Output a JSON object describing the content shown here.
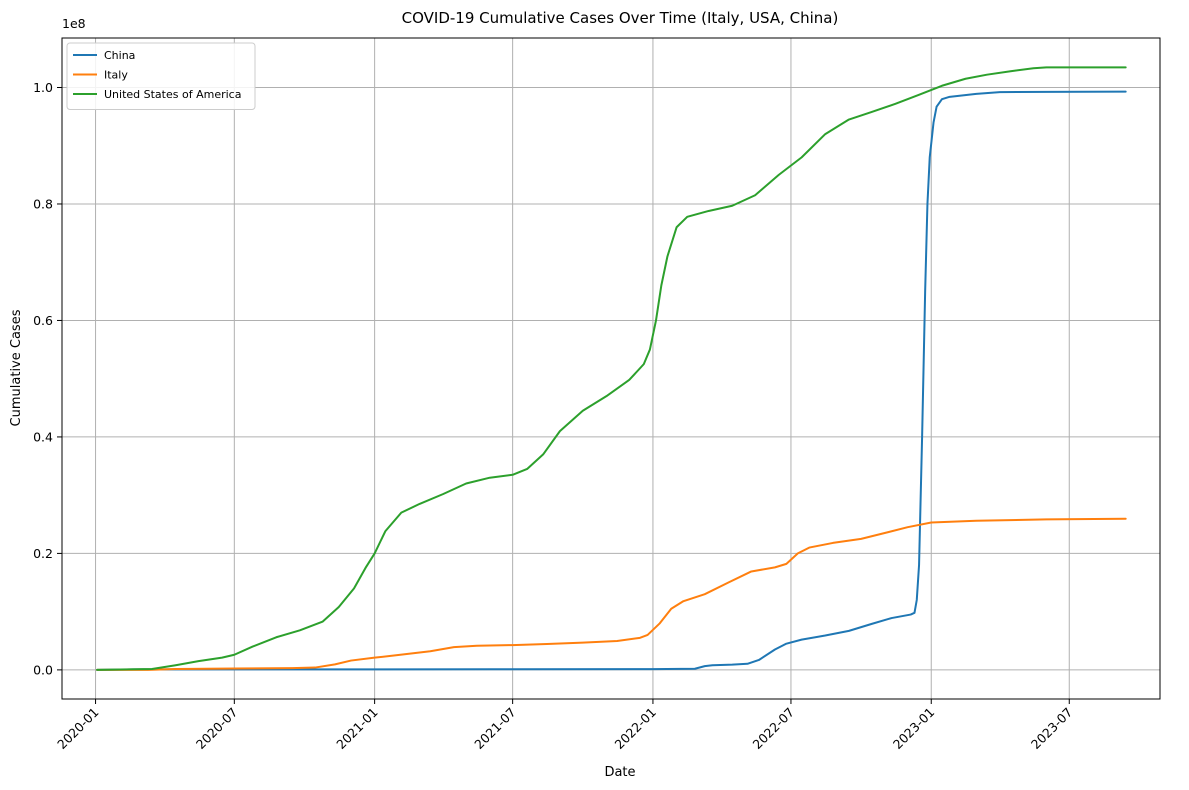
{
  "chart_data": {
    "type": "line",
    "title": "COVID-19 Cumulative Cases Over Time (Italy, USA, China)",
    "xlabel": "Date",
    "ylabel": "Cumulative Cases",
    "y_offset_label": "1e8",
    "x_axis_type": "date",
    "xlim": [
      "2019-11-18",
      "2023-10-28"
    ],
    "ylim": [
      -5000000,
      108500000
    ],
    "x_ticks": [
      "2020-01-01",
      "2020-07-01",
      "2021-01-01",
      "2021-07-01",
      "2022-01-01",
      "2022-07-01",
      "2023-01-01",
      "2023-07-01"
    ],
    "x_tick_labels": [
      "2020-01",
      "2020-07",
      "2021-01",
      "2021-07",
      "2022-01",
      "2022-07",
      "2023-01",
      "2023-07"
    ],
    "y_ticks": [
      0,
      20000000,
      40000000,
      60000000,
      80000000,
      100000000
    ],
    "y_tick_labels": [
      "0.0",
      "0.2",
      "0.4",
      "0.6",
      "0.8",
      "1.0"
    ],
    "grid": true,
    "legend_position": "top-left",
    "series": [
      {
        "name": "China",
        "color": "#1f77b4",
        "points": [
          [
            "2020-01-03",
            0
          ],
          [
            "2020-02-20",
            80000
          ],
          [
            "2020-06-01",
            84000
          ],
          [
            "2021-06-01",
            105000
          ],
          [
            "2022-01-01",
            130000
          ],
          [
            "2022-02-25",
            190000
          ],
          [
            "2022-03-10",
            650000
          ],
          [
            "2022-03-20",
            800000
          ],
          [
            "2022-04-15",
            900000
          ],
          [
            "2022-05-05",
            1050000
          ],
          [
            "2022-05-20",
            1700000
          ],
          [
            "2022-06-10",
            3500000
          ],
          [
            "2022-06-25",
            4500000
          ],
          [
            "2022-07-15",
            5200000
          ],
          [
            "2022-08-15",
            5900000
          ],
          [
            "2022-09-15",
            6700000
          ],
          [
            "2022-10-15",
            7900000
          ],
          [
            "2022-11-10",
            8900000
          ],
          [
            "2022-12-05",
            9500000
          ],
          [
            "2022-12-10",
            9800000
          ],
          [
            "2022-12-13",
            12000000
          ],
          [
            "2022-12-16",
            18000000
          ],
          [
            "2022-12-20",
            40000000
          ],
          [
            "2022-12-24",
            65000000
          ],
          [
            "2022-12-27",
            80000000
          ],
          [
            "2022-12-30",
            88000000
          ],
          [
            "2023-01-04",
            94000000
          ],
          [
            "2023-01-08",
            96700000
          ],
          [
            "2023-01-15",
            98000000
          ],
          [
            "2023-01-25",
            98400000
          ],
          [
            "2023-03-01",
            98900000
          ],
          [
            "2023-04-01",
            99200000
          ],
          [
            "2023-06-01",
            99250000
          ],
          [
            "2023-09-13",
            99300000
          ]
        ]
      },
      {
        "name": "Italy",
        "color": "#ff7f0e",
        "points": [
          [
            "2020-01-03",
            0
          ],
          [
            "2020-03-10",
            10000
          ],
          [
            "2020-04-15",
            160000
          ],
          [
            "2020-07-01",
            240000
          ],
          [
            "2020-09-15",
            300000
          ],
          [
            "2020-10-15",
            400000
          ],
          [
            "2020-11-10",
            950000
          ],
          [
            "2020-12-01",
            1600000
          ],
          [
            "2021-01-01",
            2100000
          ],
          [
            "2021-02-01",
            2550000
          ],
          [
            "2021-03-15",
            3200000
          ],
          [
            "2021-04-15",
            3900000
          ],
          [
            "2021-05-15",
            4150000
          ],
          [
            "2021-07-01",
            4260000
          ],
          [
            "2021-08-15",
            4450000
          ],
          [
            "2021-10-01",
            4680000
          ],
          [
            "2021-11-15",
            4950000
          ],
          [
            "2021-12-15",
            5500000
          ],
          [
            "2021-12-25",
            6000000
          ],
          [
            "2022-01-10",
            8000000
          ],
          [
            "2022-01-25",
            10500000
          ],
          [
            "2022-02-10",
            11800000
          ],
          [
            "2022-03-10",
            13000000
          ],
          [
            "2022-04-10",
            15000000
          ],
          [
            "2022-05-10",
            16900000
          ],
          [
            "2022-06-10",
            17600000
          ],
          [
            "2022-06-25",
            18200000
          ],
          [
            "2022-07-10",
            20000000
          ],
          [
            "2022-07-25",
            21000000
          ],
          [
            "2022-08-25",
            21800000
          ],
          [
            "2022-10-01",
            22500000
          ],
          [
            "2022-11-01",
            23500000
          ],
          [
            "2022-12-01",
            24500000
          ],
          [
            "2023-01-01",
            25300000
          ],
          [
            "2023-03-01",
            25600000
          ],
          [
            "2023-06-01",
            25850000
          ],
          [
            "2023-09-13",
            25950000
          ]
        ]
      },
      {
        "name": "United States of America",
        "color": "#2ca02c",
        "points": [
          [
            "2020-01-03",
            0
          ],
          [
            "2020-03-15",
            150000
          ],
          [
            "2020-04-15",
            800000
          ],
          [
            "2020-05-15",
            1500000
          ],
          [
            "2020-06-15",
            2100000
          ],
          [
            "2020-07-01",
            2600000
          ],
          [
            "2020-07-25",
            4000000
          ],
          [
            "2020-08-25",
            5600000
          ],
          [
            "2020-09-25",
            6800000
          ],
          [
            "2020-10-25",
            8300000
          ],
          [
            "2020-11-15",
            10800000
          ],
          [
            "2020-12-05",
            14000000
          ],
          [
            "2020-12-20",
            17500000
          ],
          [
            "2021-01-01",
            20000000
          ],
          [
            "2021-01-15",
            23800000
          ],
          [
            "2021-02-05",
            27000000
          ],
          [
            "2021-03-01",
            28500000
          ],
          [
            "2021-04-01",
            30200000
          ],
          [
            "2021-05-01",
            32000000
          ],
          [
            "2021-06-01",
            33000000
          ],
          [
            "2021-07-01",
            33500000
          ],
          [
            "2021-07-20",
            34500000
          ],
          [
            "2021-08-10",
            37000000
          ],
          [
            "2021-09-01",
            41000000
          ],
          [
            "2021-10-01",
            44500000
          ],
          [
            "2021-11-01",
            47000000
          ],
          [
            "2021-12-01",
            49800000
          ],
          [
            "2021-12-20",
            52500000
          ],
          [
            "2021-12-28",
            55000000
          ],
          [
            "2022-01-05",
            60000000
          ],
          [
            "2022-01-12",
            66000000
          ],
          [
            "2022-01-20",
            71000000
          ],
          [
            "2022-02-01",
            76000000
          ],
          [
            "2022-02-15",
            77800000
          ],
          [
            "2022-03-15",
            78800000
          ],
          [
            "2022-04-15",
            79700000
          ],
          [
            "2022-05-15",
            81500000
          ],
          [
            "2022-06-15",
            85000000
          ],
          [
            "2022-07-15",
            88000000
          ],
          [
            "2022-08-15",
            92000000
          ],
          [
            "2022-09-15",
            94500000
          ],
          [
            "2022-10-15",
            95800000
          ],
          [
            "2022-11-15",
            97200000
          ],
          [
            "2022-12-15",
            98700000
          ],
          [
            "2023-01-15",
            100300000
          ],
          [
            "2023-02-15",
            101500000
          ],
          [
            "2023-03-15",
            102200000
          ],
          [
            "2023-04-15",
            102800000
          ],
          [
            "2023-05-15",
            103300000
          ],
          [
            "2023-06-01",
            103450000
          ],
          [
            "2023-09-13",
            103450000
          ]
        ]
      }
    ]
  }
}
